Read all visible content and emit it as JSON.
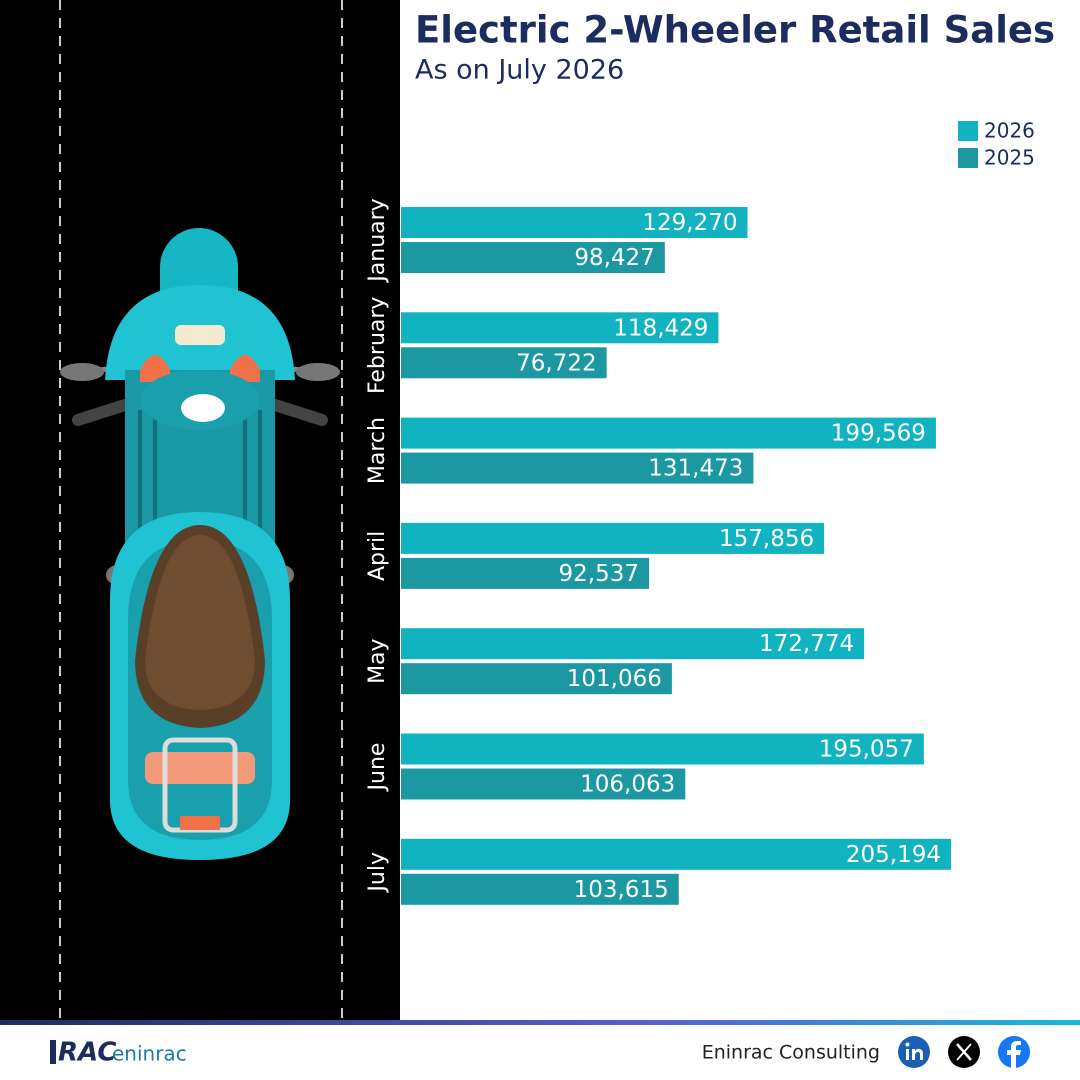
{
  "chart_data": {
    "type": "bar",
    "orientation": "horizontal",
    "title": "Electric 2-Wheeler Retail Sales",
    "subtitle": "As on July 2026",
    "categories": [
      "January",
      "February",
      "March",
      "April",
      "May",
      "June",
      "July"
    ],
    "series": [
      {
        "name": "2026",
        "color": "#12b3c0",
        "values": [
          129270,
          118429,
          199569,
          157856,
          172774,
          195057,
          205194
        ],
        "value_labels": [
          "129,270",
          "118,429",
          "199,569",
          "157,856",
          "172,774",
          "195,057",
          "205,194"
        ]
      },
      {
        "name": "2025",
        "color": "#1b98a1",
        "values": [
          98427,
          76722,
          131473,
          92537,
          101066,
          106063,
          103615
        ],
        "value_labels": [
          "98,427",
          "76,722",
          "131,473",
          "92,537",
          "101,066",
          "106,063",
          "103,615"
        ]
      }
    ],
    "legend": "top-right"
  },
  "footer": {
    "logo_main": "RAC",
    "logo_sub": "eninrac",
    "company": "Eninrac Consulting"
  }
}
